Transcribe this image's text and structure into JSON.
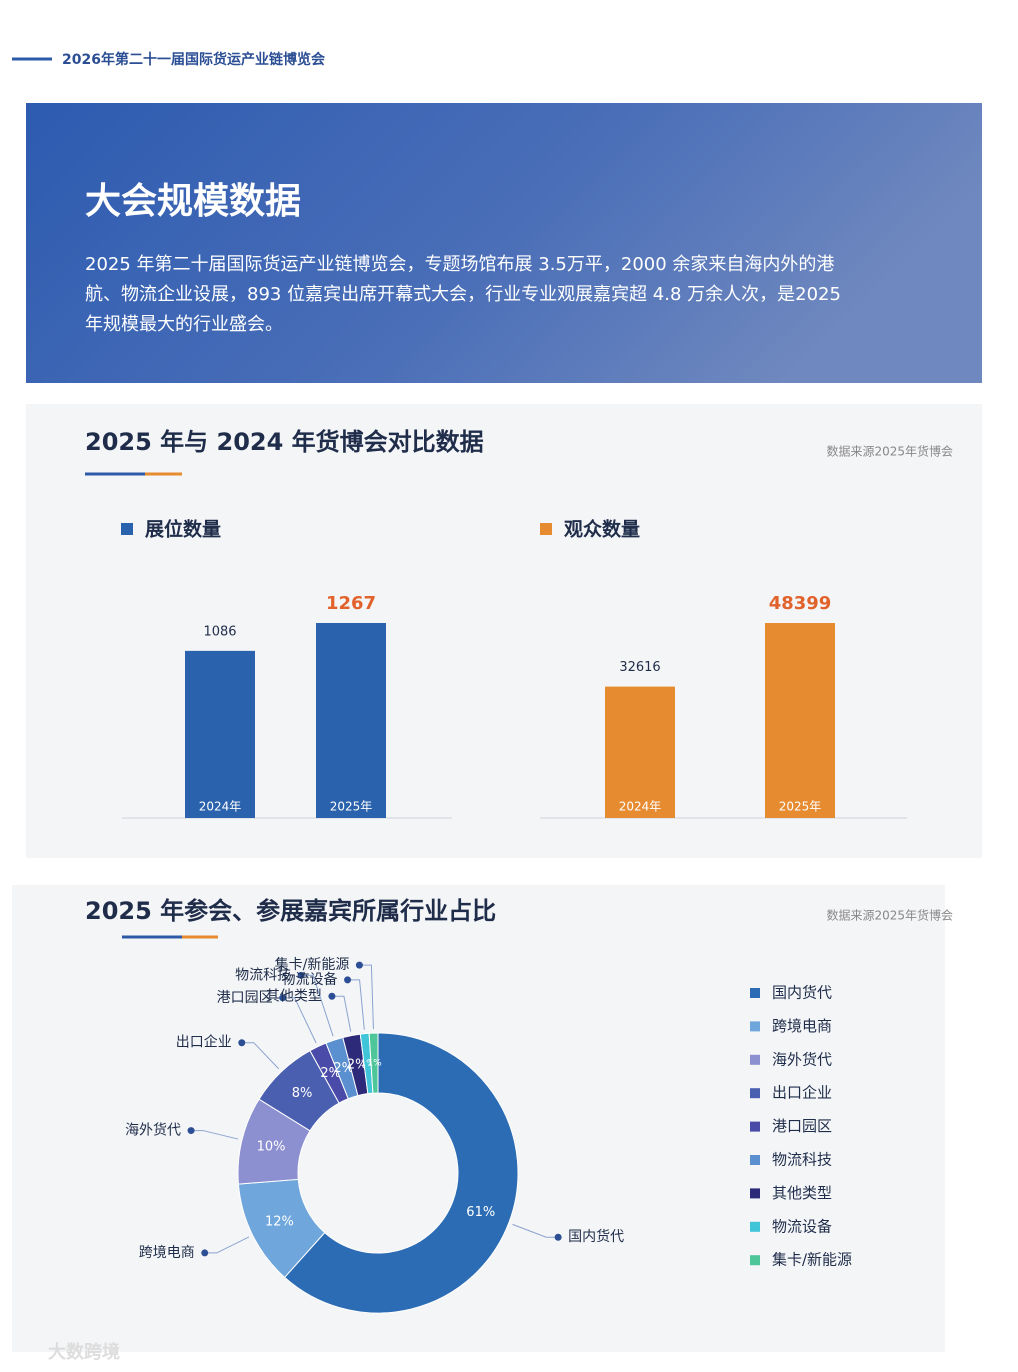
{
  "header": {
    "title": "2026年第二十一届国际货运产业链博览会"
  },
  "banner": {
    "title": "大会规模数据",
    "lines": [
      "2025 年第二十届国际货运产业链博览会，专题场馆布展 3.5万平，2000 余家来自海内外的港",
      "航、物流企业设展，893 位嘉宾出席开幕式大会，行业专业观展嘉宾超 4.8 万余人次，是2025",
      "年规模最大的行业盛会。"
    ]
  },
  "sections": [
    {
      "title": "2025 年与 2024 年货博会对比数据",
      "source": "数据来源2025年货博会"
    },
    {
      "title": "2025 年参会、参展嘉宾所属行业占比",
      "source": "数据来源2025年货博会"
    }
  ],
  "chart_data": [
    {
      "type": "bar",
      "title": "展位数量",
      "categories": [
        "2024年",
        "2025年"
      ],
      "values": [
        1086,
        1267
      ],
      "color": "#2b62ad",
      "label_colors": [
        "#1f2d4a",
        "#e2622b"
      ]
    },
    {
      "type": "bar",
      "title": "观众数量",
      "categories": [
        "2024年",
        "2025年"
      ],
      "values": [
        32616,
        48399
      ],
      "color": "#e68b30",
      "label_colors": [
        "#1f2d4a",
        "#e2622b"
      ]
    },
    {
      "type": "pie",
      "categories": [
        "国内货代",
        "跨境电商",
        "海外货代",
        "出口企业",
        "港口园区",
        "物流科技",
        "其他类型",
        "物流设备",
        "集卡/新能源"
      ],
      "values": [
        61,
        12,
        10,
        8,
        2,
        2,
        2,
        1,
        1
      ],
      "value_labels": [
        "61%",
        "12%",
        "10%",
        "8%",
        "2%",
        "2%",
        "2%",
        "1%",
        "1%"
      ],
      "colors": [
        "#2c6cb5",
        "#6fa6dc",
        "#8c8fd0",
        "#4b5fb0",
        "#4a4aa8",
        "#5a8fd0",
        "#2e2a7a",
        "#3fc4d8",
        "#4fc59a"
      ]
    }
  ],
  "watermark": "大数跨境"
}
